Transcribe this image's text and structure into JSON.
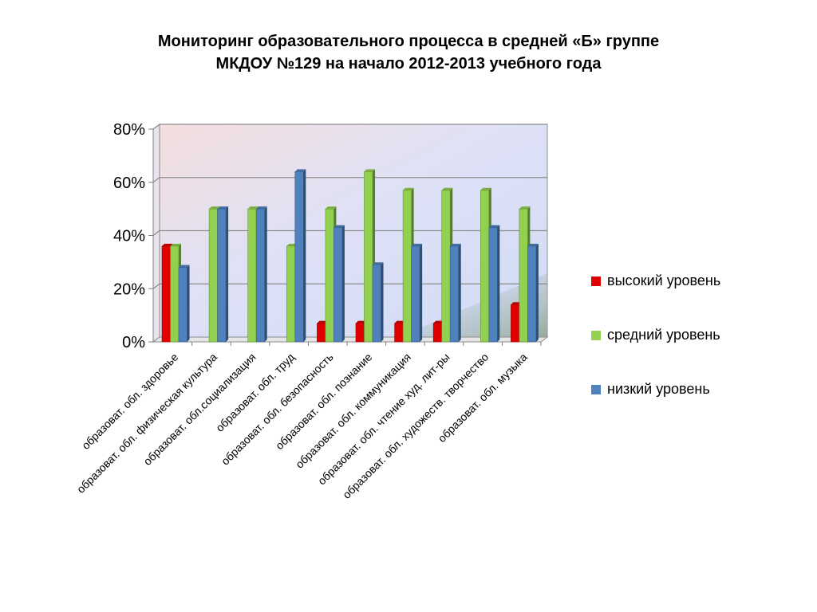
{
  "chart_data": {
    "type": "bar",
    "title": [
      "Мониторинг образовательного процесса в средней «Б» группе",
      "МКДОУ №129 на начало 2012-2013 учебного года"
    ],
    "categories": [
      "образоват. обл. здоровье",
      "образоват. обл. физическая культура",
      "образоват. обл.социализация",
      "образоват. обл. труд",
      "образоват. обл. безопасность",
      "образоват. обл. познание",
      "образоват. обл. коммуникация",
      "образоват. обл. чтение худ. лит-ры",
      "образоват. обл. художеств. творчество",
      "образоват. обл. музыка"
    ],
    "series": [
      {
        "name": "высокий уровень",
        "color": "#e00000",
        "values": [
          36,
          0,
          0,
          0,
          7,
          7,
          7,
          7,
          0,
          14
        ]
      },
      {
        "name": "средний уровень",
        "color": "#92d050",
        "values": [
          36,
          50,
          50,
          36,
          50,
          64,
          57,
          57,
          57,
          50
        ]
      },
      {
        "name": "низкий уровень",
        "color": "#4f81bd",
        "values": [
          28,
          50,
          50,
          64,
          43,
          29,
          36,
          36,
          43,
          36
        ]
      }
    ],
    "yticks": [
      "0%",
      "20%",
      "40%",
      "60%",
      "80%"
    ],
    "ylim": [
      0,
      80
    ],
    "legend_position": "right",
    "grid": true
  }
}
